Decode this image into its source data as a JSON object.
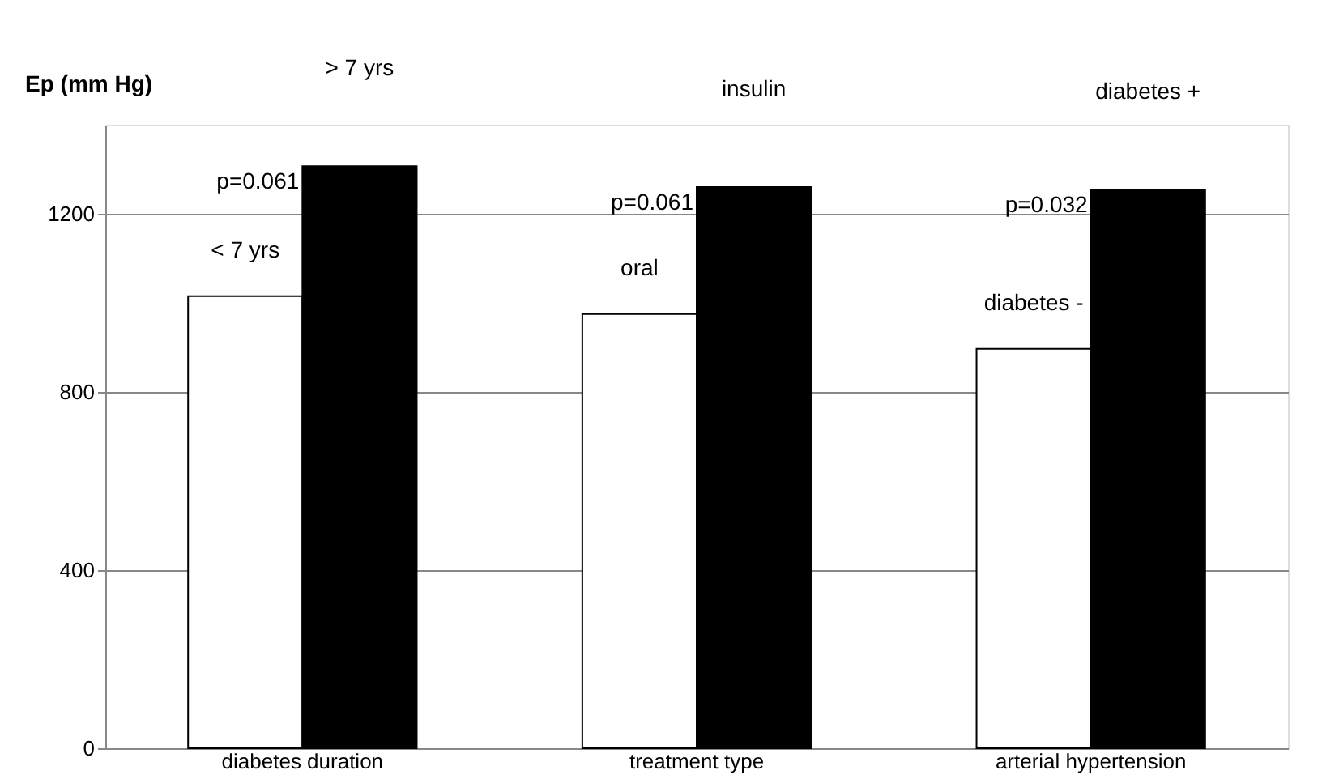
{
  "chart_data": {
    "type": "bar",
    "ylabel": "Ep (mm Hg)",
    "categories": [
      "diabetes duration",
      "treatment type",
      "arterial hypertension"
    ],
    "series": [
      {
        "color": "#ffffff",
        "values": [
          1015,
          975,
          897
        ]
      },
      {
        "color": "#000000",
        "values": [
          1307,
          1260,
          1254
        ]
      }
    ],
    "ylim": [
      0,
      1400
    ],
    "yticks": [
      0,
      400,
      800,
      1200
    ],
    "grid": "y",
    "legend": false,
    "annotations": [
      "< 7 yrs",
      "p=0.061",
      "> 7 yrs",
      "oral",
      "p=0.061",
      "insulin",
      "diabetes -",
      "p=0.032",
      "diabetes +"
    ]
  }
}
